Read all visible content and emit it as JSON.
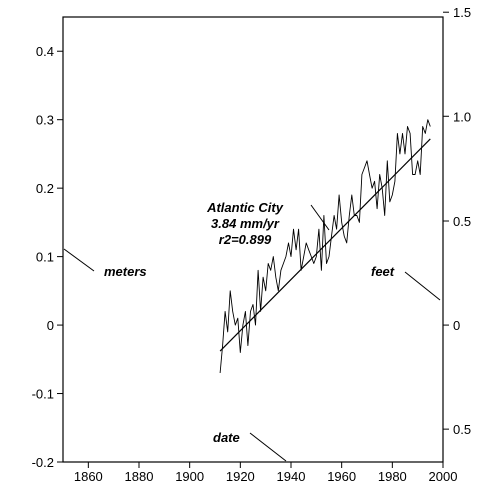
{
  "chart_data": {
    "type": "line",
    "x_axis": {
      "label": "date",
      "range": [
        1850,
        2000
      ],
      "ticks": [
        1860,
        1880,
        1900,
        1920,
        1940,
        1960,
        1980,
        2000
      ]
    },
    "y_left": {
      "label": "meters",
      "range": [
        -0.2,
        0.45
      ],
      "ticks": [
        "-0.2",
        "-0.1",
        "0",
        "0.1",
        "0.2",
        "0.3",
        "0.4"
      ]
    },
    "y_right": {
      "label": "feet",
      "tick_labels": [
        {
          "text": "1.5",
          "at_meters": 0.457
        },
        {
          "text": "1.0",
          "at_meters": 0.305
        },
        {
          "text": "0.5",
          "at_meters": 0.152
        },
        {
          "text": "0",
          "at_meters": 0.0
        },
        {
          "text": "0.5",
          "at_meters": -0.152
        }
      ]
    },
    "annotation": {
      "lines": [
        "Atlantic City",
        "3.84 mm/yr",
        "r2=0.899"
      ]
    },
    "series": [
      {
        "type": "line",
        "x": [
          1912,
          1913,
          1914,
          1915,
          1916,
          1917,
          1918,
          1919,
          1920,
          1921,
          1922,
          1923,
          1924,
          1925,
          1926,
          1927,
          1928,
          1929,
          1930,
          1931,
          1932,
          1933,
          1934,
          1935,
          1936,
          1937,
          1938,
          1939,
          1940,
          1941,
          1942,
          1943,
          1944,
          1945,
          1946,
          1947,
          1948,
          1949,
          1950,
          1951,
          1952,
          1953,
          1954,
          1955,
          1956,
          1957,
          1958,
          1959,
          1960,
          1961,
          1962,
          1963,
          1964,
          1965,
          1966,
          1967,
          1968,
          1969,
          1970,
          1971,
          1972,
          1973,
          1974,
          1975,
          1976,
          1977,
          1978,
          1979,
          1980,
          1981,
          1982,
          1983,
          1984,
          1985,
          1986,
          1987,
          1988,
          1989,
          1990,
          1991,
          1992,
          1993,
          1994,
          1995
        ],
        "y": [
          -0.07,
          -0.03,
          0.02,
          -0.01,
          0.05,
          0.02,
          0.0,
          0.01,
          -0.04,
          0.0,
          0.02,
          -0.03,
          0.02,
          0.03,
          0.0,
          0.08,
          0.02,
          0.07,
          0.05,
          0.09,
          0.08,
          0.1,
          0.07,
          0.05,
          0.08,
          0.09,
          0.1,
          0.12,
          0.1,
          0.14,
          0.11,
          0.14,
          0.08,
          0.1,
          0.12,
          0.11,
          0.1,
          0.09,
          0.1,
          0.14,
          0.08,
          0.16,
          0.09,
          0.1,
          0.13,
          0.16,
          0.14,
          0.19,
          0.15,
          0.13,
          0.12,
          0.16,
          0.19,
          0.16,
          0.16,
          0.15,
          0.22,
          0.23,
          0.24,
          0.22,
          0.2,
          0.21,
          0.17,
          0.22,
          0.2,
          0.16,
          0.24,
          0.18,
          0.19,
          0.21,
          0.28,
          0.25,
          0.28,
          0.25,
          0.29,
          0.28,
          0.22,
          0.22,
          0.24,
          0.22,
          0.29,
          0.28,
          0.3,
          0.29
        ]
      },
      {
        "type": "trend",
        "x": [
          1912,
          1995
        ],
        "y": [
          -0.038,
          0.272
        ]
      }
    ]
  }
}
